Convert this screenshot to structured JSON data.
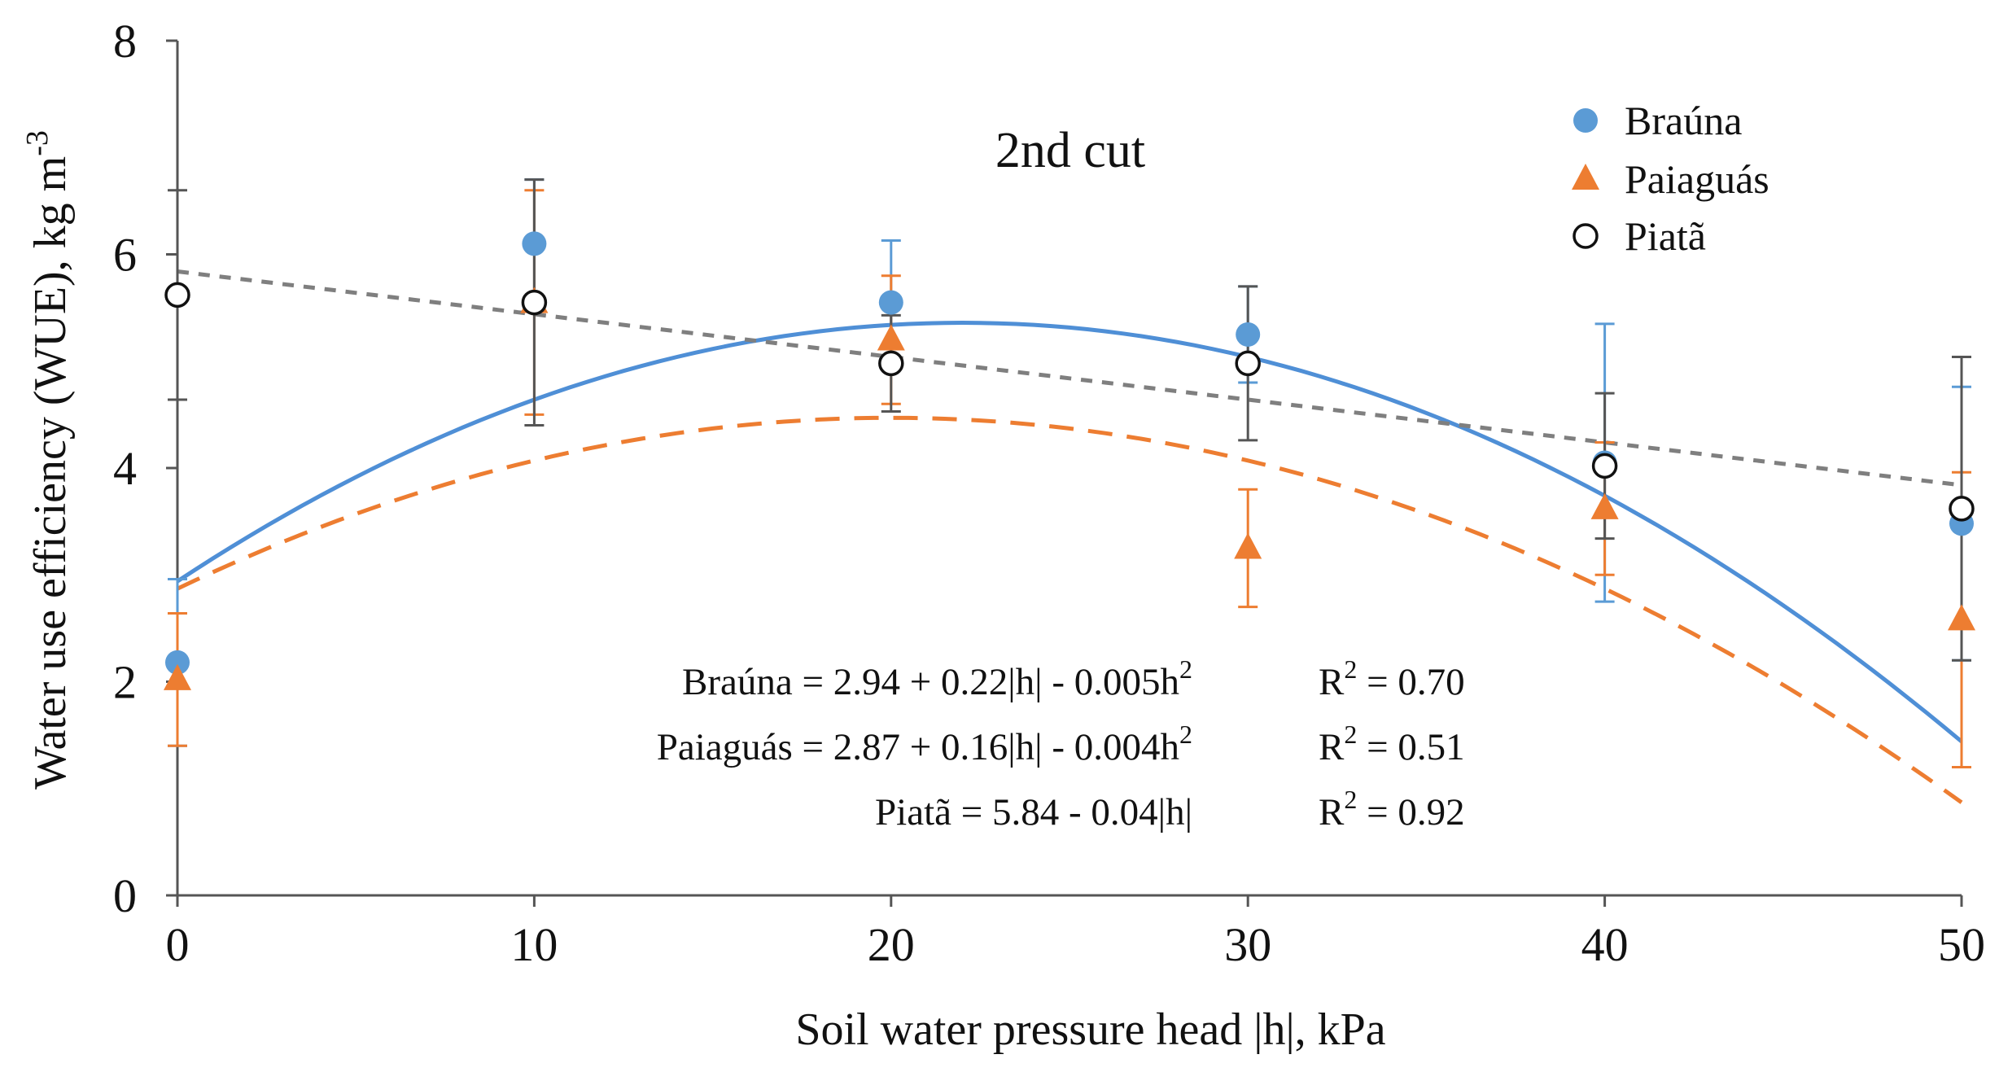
{
  "chart_data": {
    "type": "scatter",
    "title": "2nd cut",
    "xlabel": "Soil water pressure head |h|, kPa",
    "ylabel": "Water use efficiency (WUE), kg m",
    "ylabel_sup": "-3",
    "x_ticks": [
      "0",
      "10",
      "20",
      "30",
      "40",
      "50"
    ],
    "y_ticks": [
      "0",
      "2",
      "4",
      "6",
      "8"
    ],
    "xlim": [
      0,
      50
    ],
    "ylim": [
      0,
      8
    ],
    "x": [
      0,
      10,
      20,
      30,
      40,
      50
    ],
    "series": [
      {
        "name": "Braúna",
        "marker": "filled-circle",
        "color": "#5b9bd5",
        "line_color": "#4f8fd6",
        "values": [
          2.18,
          6.1,
          5.55,
          5.25,
          4.05,
          3.48
        ],
        "error": [
          0.78,
          0.6,
          0.58,
          0.45,
          1.3,
          1.28
        ],
        "fit": {
          "type": "quadratic",
          "a": 2.94,
          "b": 0.22,
          "c": -0.005,
          "dash": "solid"
        },
        "equation": "Braúna = 2.94 + 0.22|h| - 0.005h",
        "equation_sup": "2",
        "r2_label": "R",
        "r2_sup": "2",
        "r2_value": " = 0.70"
      },
      {
        "name": "Paiaguás",
        "marker": "filled-triangle",
        "color": "#ed7d31",
        "line_color": "#ed7d31",
        "values": [
          2.02,
          5.55,
          5.2,
          3.25,
          3.62,
          2.58
        ],
        "error": [
          0.62,
          1.05,
          0.6,
          0.55,
          0.62,
          1.38
        ],
        "fit": {
          "type": "quadratic",
          "a": 2.87,
          "b": 0.16,
          "c": -0.004,
          "dash": "long-dash"
        },
        "equation": "Paiaguás = 2.87 + 0.16|h| - 0.004h",
        "equation_sup": "2",
        "r2_label": "R",
        "r2_sup": "2",
        "r2_value": " = 0.51"
      },
      {
        "name": "Piatã",
        "marker": "open-circle",
        "color": "#111111",
        "line_color": "#7f7f7f",
        "values": [
          5.62,
          5.55,
          4.98,
          4.98,
          4.02,
          3.62
        ],
        "error": [
          0.98,
          1.15,
          0.45,
          0.72,
          0.68,
          1.42
        ],
        "fit": {
          "type": "linear",
          "a": 5.84,
          "b": -0.04,
          "c": 0,
          "dash": "short-dash"
        },
        "equation": "Piatã = 5.84 - 0.04|h|",
        "equation_sup": "",
        "r2_label": "R",
        "r2_sup": "2",
        "r2_value": " = 0.92"
      }
    ]
  }
}
